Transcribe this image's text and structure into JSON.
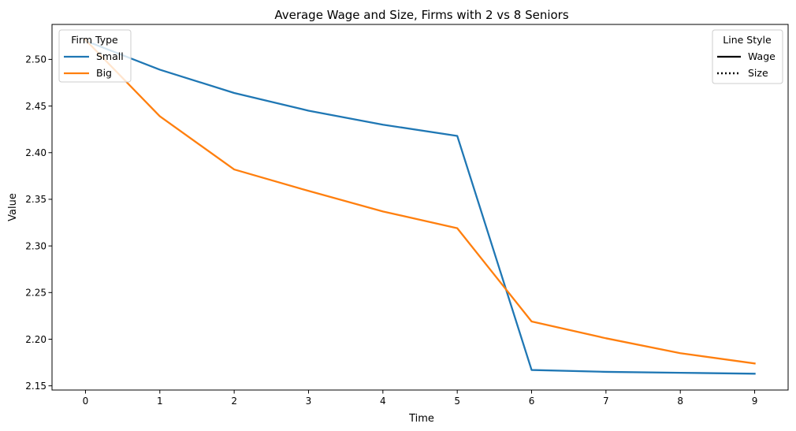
{
  "chart_data": {
    "type": "line",
    "title": "Average Wage and Size, Firms with 2 vs 8 Seniors",
    "xlabel": "Time",
    "ylabel": "Value",
    "x": [
      0,
      1,
      2,
      3,
      4,
      5,
      6,
      7,
      8,
      9
    ],
    "xticks": [
      "0",
      "1",
      "2",
      "3",
      "4",
      "5",
      "6",
      "7",
      "8",
      "9"
    ],
    "yticks": [
      "2.15",
      "2.20",
      "2.25",
      "2.30",
      "2.35",
      "2.40",
      "2.45",
      "2.50"
    ],
    "xlim": [
      -0.45,
      9.45
    ],
    "ylim": [
      2.1455,
      2.5375
    ],
    "grid": false,
    "series": [
      {
        "name": "Small",
        "color": "#1f77b4",
        "style": "solid",
        "values": [
          2.52,
          2.489,
          2.464,
          2.445,
          2.43,
          2.418,
          2.167,
          2.165,
          2.164,
          2.163
        ]
      },
      {
        "name": "Big",
        "color": "#ff7f0e",
        "style": "solid",
        "values": [
          2.521,
          2.439,
          2.382,
          2.359,
          2.337,
          2.319,
          2.219,
          2.201,
          2.185,
          2.174
        ]
      }
    ],
    "legends": [
      {
        "title": "Firm Type",
        "placement": "top-left",
        "entries": [
          {
            "label": "Small",
            "color": "#1f77b4",
            "style": "solid"
          },
          {
            "label": "Big",
            "color": "#ff7f0e",
            "style": "solid"
          }
        ]
      },
      {
        "title": "Line Style",
        "placement": "top-right",
        "entries": [
          {
            "label": "Wage",
            "color": "#000000",
            "style": "solid"
          },
          {
            "label": "Size",
            "color": "#000000",
            "style": "dotted"
          }
        ]
      }
    ]
  }
}
